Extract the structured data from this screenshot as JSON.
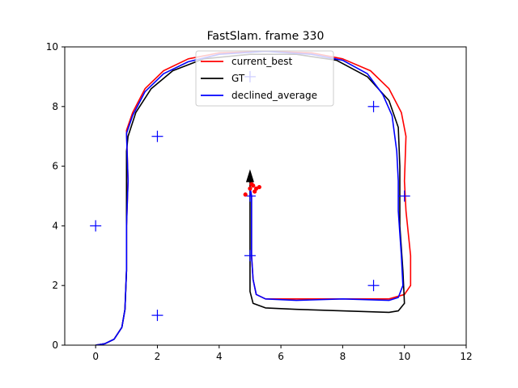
{
  "chart_data": {
    "type": "line",
    "title": "FastSlam. frame 330",
    "xlabel": "",
    "ylabel": "",
    "xlim": [
      -1,
      12
    ],
    "ylim": [
      0,
      10
    ],
    "x_ticks": [
      "0",
      "2",
      "4",
      "6",
      "8",
      "10",
      "12"
    ],
    "y_ticks": [
      "0",
      "2",
      "4",
      "6",
      "8",
      "10"
    ],
    "grid": false,
    "legend_position": "top-center",
    "legend": [
      "current_best",
      "GT",
      "declined_average"
    ],
    "series": [
      {
        "name": "current_best",
        "color": "#ff0000",
        "points": [
          [
            0.0,
            0.0
          ],
          [
            0.3,
            0.05
          ],
          [
            0.6,
            0.2
          ],
          [
            0.85,
            0.6
          ],
          [
            0.95,
            1.2
          ],
          [
            1.0,
            2.5
          ],
          [
            1.0,
            4.0
          ],
          [
            1.05,
            5.5
          ],
          [
            1.0,
            7.2
          ],
          [
            1.2,
            7.8
          ],
          [
            1.6,
            8.6
          ],
          [
            2.2,
            9.2
          ],
          [
            3.0,
            9.6
          ],
          [
            4.0,
            9.8
          ],
          [
            5.5,
            9.85
          ],
          [
            7.0,
            9.8
          ],
          [
            8.0,
            9.6
          ],
          [
            8.9,
            9.2
          ],
          [
            9.5,
            8.6
          ],
          [
            9.9,
            7.8
          ],
          [
            10.05,
            7.0
          ],
          [
            10.0,
            5.5
          ],
          [
            10.05,
            4.5
          ],
          [
            10.2,
            3.0
          ],
          [
            10.2,
            2.0
          ],
          [
            10.0,
            1.7
          ],
          [
            9.5,
            1.55
          ],
          [
            8.0,
            1.55
          ],
          [
            6.5,
            1.55
          ],
          [
            5.5,
            1.55
          ],
          [
            5.2,
            1.7
          ],
          [
            5.1,
            2.2
          ],
          [
            5.05,
            3.0
          ],
          [
            5.05,
            4.0
          ],
          [
            5.05,
            5.0
          ],
          [
            5.0,
            5.3
          ]
        ]
      },
      {
        "name": "GT",
        "color": "#000000",
        "points": [
          [
            0.0,
            0.0
          ],
          [
            0.3,
            0.05
          ],
          [
            0.6,
            0.2
          ],
          [
            0.85,
            0.6
          ],
          [
            0.95,
            1.2
          ],
          [
            1.0,
            2.5
          ],
          [
            1.0,
            4.0
          ],
          [
            1.0,
            6.5
          ],
          [
            1.05,
            7.0
          ],
          [
            1.3,
            7.8
          ],
          [
            1.8,
            8.6
          ],
          [
            2.5,
            9.2
          ],
          [
            3.5,
            9.6
          ],
          [
            5.0,
            9.75
          ],
          [
            6.5,
            9.75
          ],
          [
            7.8,
            9.55
          ],
          [
            8.8,
            9.0
          ],
          [
            9.5,
            8.2
          ],
          [
            9.8,
            7.3
          ],
          [
            9.85,
            6.0
          ],
          [
            9.85,
            4.0
          ],
          [
            9.95,
            2.5
          ],
          [
            10.0,
            1.4
          ],
          [
            9.8,
            1.15
          ],
          [
            9.5,
            1.1
          ],
          [
            8.0,
            1.15
          ],
          [
            6.5,
            1.2
          ],
          [
            5.5,
            1.25
          ],
          [
            5.1,
            1.4
          ],
          [
            5.0,
            1.8
          ],
          [
            5.0,
            3.0
          ],
          [
            5.0,
            4.0
          ],
          [
            5.0,
            5.0
          ],
          [
            5.0,
            5.5
          ]
        ]
      },
      {
        "name": "declined_average",
        "color": "#0000ff",
        "points": [
          [
            0.0,
            0.0
          ],
          [
            0.3,
            0.05
          ],
          [
            0.6,
            0.2
          ],
          [
            0.85,
            0.6
          ],
          [
            0.95,
            1.2
          ],
          [
            1.0,
            2.5
          ],
          [
            1.0,
            4.0
          ],
          [
            1.05,
            5.5
          ],
          [
            1.0,
            7.1
          ],
          [
            1.2,
            7.7
          ],
          [
            1.6,
            8.5
          ],
          [
            2.2,
            9.1
          ],
          [
            3.0,
            9.5
          ],
          [
            4.0,
            9.75
          ],
          [
            5.5,
            9.85
          ],
          [
            7.0,
            9.75
          ],
          [
            8.0,
            9.55
          ],
          [
            8.8,
            9.1
          ],
          [
            9.3,
            8.4
          ],
          [
            9.6,
            7.7
          ],
          [
            9.75,
            6.5
          ],
          [
            9.8,
            5.5
          ],
          [
            9.8,
            4.5
          ],
          [
            9.9,
            3.0
          ],
          [
            9.95,
            2.0
          ],
          [
            9.8,
            1.6
          ],
          [
            9.5,
            1.5
          ],
          [
            8.0,
            1.55
          ],
          [
            6.5,
            1.5
          ],
          [
            5.5,
            1.55
          ],
          [
            5.2,
            1.7
          ],
          [
            5.1,
            2.2
          ],
          [
            5.05,
            3.0
          ],
          [
            5.05,
            4.0
          ],
          [
            5.05,
            5.0
          ],
          [
            5.0,
            5.3
          ]
        ]
      }
    ],
    "landmarks": [
      [
        2,
        7
      ],
      [
        0,
        4
      ],
      [
        2,
        1
      ],
      [
        5,
        9
      ],
      [
        9,
        8
      ],
      [
        10,
        5
      ],
      [
        5,
        3
      ],
      [
        9,
        2
      ],
      [
        5,
        5
      ]
    ],
    "particles": [
      [
        4.85,
        5.05
      ],
      [
        5.0,
        5.25
      ],
      [
        5.1,
        5.35
      ],
      [
        5.2,
        5.25
      ],
      [
        5.3,
        5.3
      ],
      [
        5.15,
        5.15
      ],
      [
        5.05,
        5.4
      ]
    ],
    "robot_pose": {
      "x": 5.0,
      "y": 5.3,
      "heading_deg": 90
    }
  }
}
